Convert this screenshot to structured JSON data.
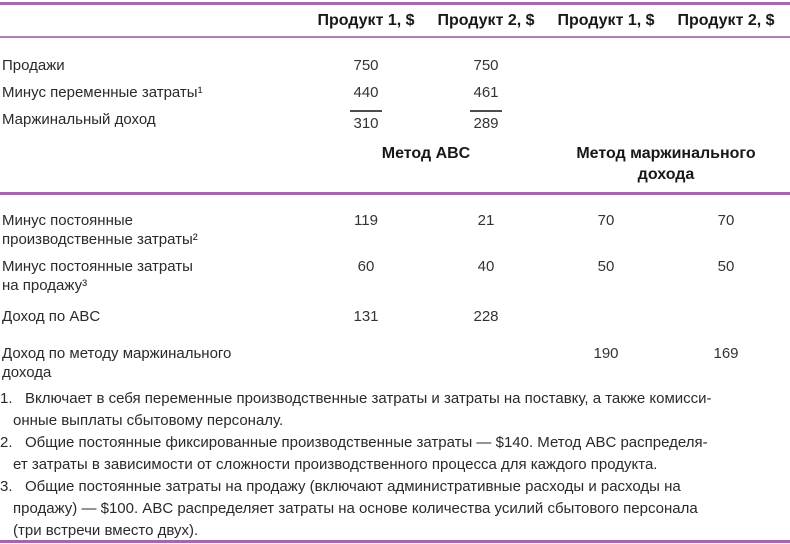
{
  "accent_color": "#a666ae",
  "table": {
    "col_headers": [
      "Продукт 1, $",
      "Продукт 2, $",
      "Продукт 1, $",
      "Продукт 2, $"
    ],
    "method_headers": {
      "abc": "Метод ABC",
      "margin": "Метод маржинального\nдохода"
    },
    "rows_top": [
      {
        "label": "Продажи",
        "values": [
          "750",
          "750",
          "",
          ""
        ]
      },
      {
        "label": "Минус переменные затраты¹",
        "values": [
          "440",
          "461",
          "",
          ""
        ]
      },
      {
        "label": "Маржинальный доход",
        "values": [
          "310",
          "289",
          "",
          ""
        ],
        "underlined_totals": true
      }
    ],
    "rows_bottom": [
      {
        "label": "Минус постоянные\nпроизводственные затраты²",
        "values": [
          "119",
          "21",
          "70",
          "70"
        ]
      },
      {
        "label": "Минус постоянные затраты\nна продажу³",
        "values": [
          "60",
          "40",
          "50",
          "50"
        ]
      },
      {
        "label": "Доход по ABC",
        "values": [
          "131",
          "228",
          "",
          ""
        ]
      },
      {
        "label": "Доход по методу маржинального\nдохода",
        "values": [
          "",
          "",
          "190",
          "169"
        ]
      }
    ]
  },
  "footnotes": [
    {
      "marker": "1.",
      "text": "Включает в себя переменные производственные затраты и затраты на поставку, а также комисси-\nонные выплаты сбытовому персоналу."
    },
    {
      "marker": "2.",
      "text": "Общие постоянные фиксированные производственные затраты — $140. Метод ABC распределя-\nет затраты в зависимости от сложности производственного процесса для каждого продукта."
    },
    {
      "marker": "3.",
      "text": "Общие постоянные затраты на продажу (включают административные расходы и расходы на\nпродажу) — $100. ABC распределяет затраты на основе количества усилий сбытового персонала\n(три встречи вместо двух)."
    }
  ]
}
